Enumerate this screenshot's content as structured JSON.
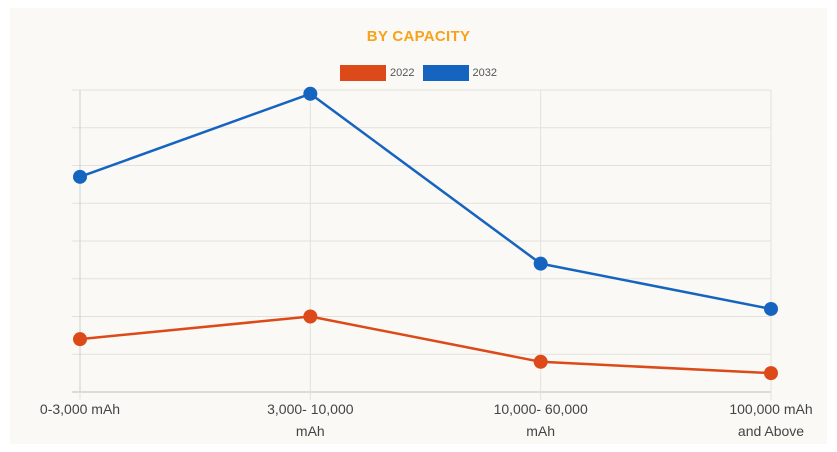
{
  "chart_data": {
    "type": "line",
    "title": "BY CAPACITY",
    "categories": [
      [
        "0-3,000 mAh"
      ],
      [
        "3,000- 10,000",
        "mAh"
      ],
      [
        "10,000- 60,000",
        "mAh"
      ],
      [
        "100,000 mAh",
        "and Above"
      ]
    ],
    "series": [
      {
        "name": "2022",
        "color": "#dc4a1a",
        "values": [
          14,
          20,
          8,
          5
        ]
      },
      {
        "name": "2032",
        "color": "#1565c0",
        "values": [
          57,
          79,
          34,
          22
        ]
      }
    ],
    "ylim": [
      0,
      80
    ],
    "grid": true,
    "legend_position": "top-center"
  }
}
